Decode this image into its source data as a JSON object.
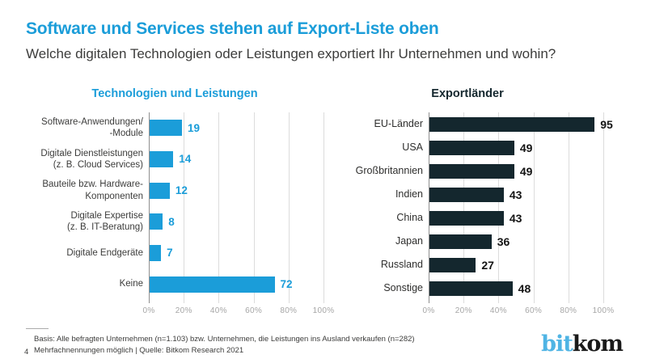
{
  "page": {
    "title": "Software und Services stehen auf Export-Liste oben",
    "subtitle": "Welche digitalen Technologien oder Leistungen exportiert Ihr Unternehmen und wohin?"
  },
  "colors": {
    "accent_cyan": "#1B9DD9",
    "dark_navy": "#14272E",
    "text": "#3C3C3B",
    "axis_label": "#A6A6A6",
    "gridline": "#DCDCDC"
  },
  "chart_data": [
    {
      "type": "bar",
      "orientation": "horizontal",
      "title": "Technologien und Leistungen",
      "title_color": "#1B9DD9",
      "bar_color": "#1B9DD9",
      "value_color": "#1B9DD9",
      "label_color": "#3C3C3B",
      "categories": [
        "Software-Anwendungen/\n-Module",
        "Digitale Dienstleistungen\n(z. B. Cloud Services)",
        "Bauteile bzw. Hardware-\nKomponenten",
        "Digitale Expertise\n(z. B. IT-Beratung)",
        "Digitale Endgeräte",
        "Keine"
      ],
      "values": [
        19,
        14,
        12,
        8,
        7,
        72
      ],
      "unit": "%",
      "xlim": [
        0,
        100
      ],
      "x_ticks": [
        "0%",
        "20%",
        "40%",
        "60%",
        "80%",
        "100%"
      ],
      "grid": true,
      "legend": false
    },
    {
      "type": "bar",
      "orientation": "horizontal",
      "title": "Exportländer",
      "title_color": "#14272E",
      "bar_color": "#14272E",
      "value_color": "#141414",
      "label_color": "#2E2E2D",
      "categories": [
        "EU-Länder",
        "USA",
        "Großbritannien",
        "Indien",
        "China",
        "Japan",
        "Russland",
        "Sonstige"
      ],
      "values": [
        95,
        49,
        49,
        43,
        43,
        36,
        27,
        48
      ],
      "unit": "%",
      "xlim": [
        0,
        100
      ],
      "x_ticks": [
        "0%",
        "20%",
        "40%",
        "60%",
        "80%",
        "100%"
      ],
      "grid": true,
      "legend": false
    }
  ],
  "footer": {
    "basis": "Basis: Alle befragten Unternehmen (n=1.103) bzw. Unternehmen, die Leistungen ins Ausland verkaufen (n=282)",
    "page_number": "4",
    "note": "Mehrfachnennungen möglich | Quelle: Bitkom Research 2021",
    "logo": {
      "part1": "bit",
      "part2": "kom"
    }
  }
}
